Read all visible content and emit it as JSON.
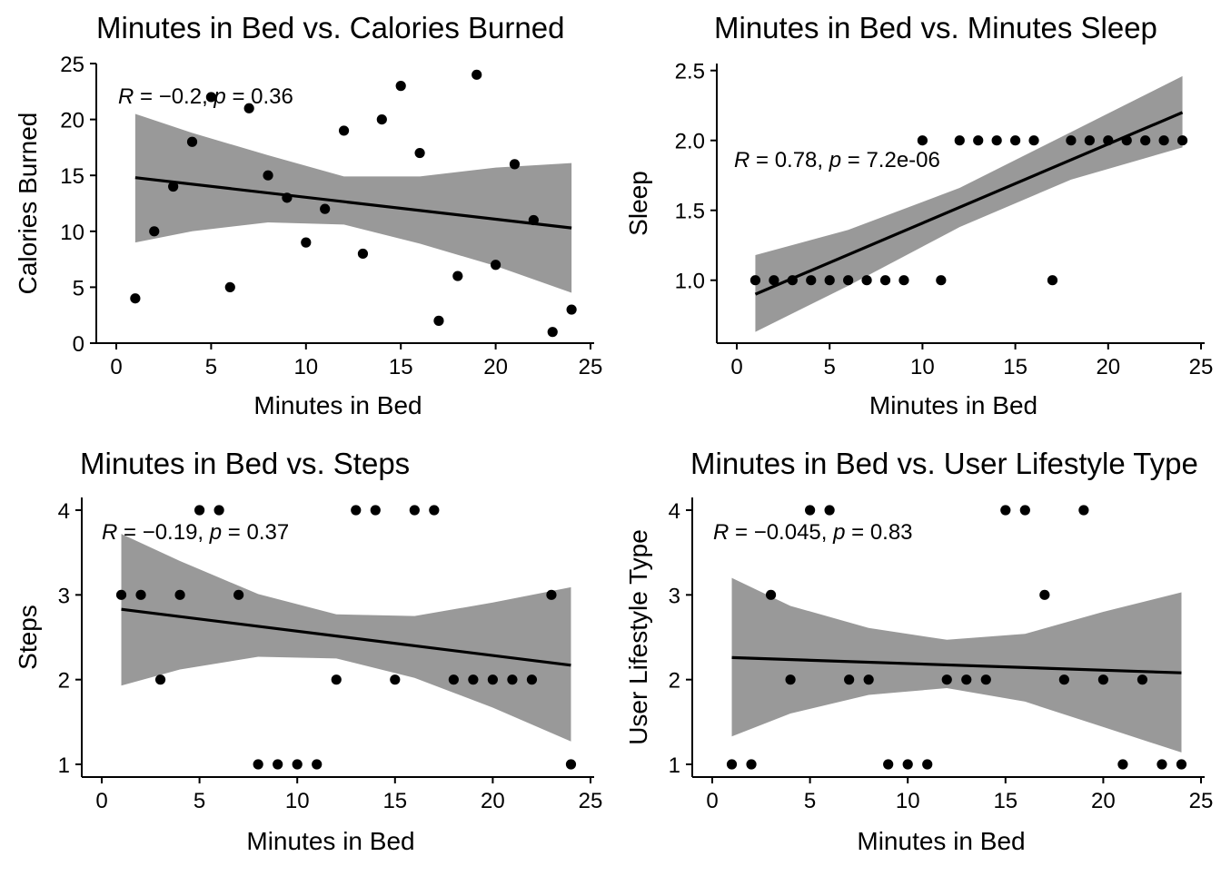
{
  "chart_data": [
    {
      "type": "scatter",
      "title": "Minutes in Bed vs. Calories Burned",
      "xlabel": "Minutes in Bed",
      "ylabel": "Calories Burned",
      "xlim": [
        0,
        25
      ],
      "ylim": [
        0,
        25
      ],
      "xticks": [
        0,
        5,
        10,
        15,
        20,
        25
      ],
      "yticks": [
        0,
        5,
        10,
        15,
        20,
        25
      ],
      "annotation": {
        "r": "-0.2",
        "p": "0.36"
      },
      "points": [
        [
          1,
          4
        ],
        [
          2,
          10
        ],
        [
          3,
          14
        ],
        [
          4,
          18
        ],
        [
          5,
          22
        ],
        [
          6,
          5
        ],
        [
          7,
          21
        ],
        [
          8,
          15
        ],
        [
          9,
          13
        ],
        [
          10,
          9
        ],
        [
          11,
          12
        ],
        [
          12,
          19
        ],
        [
          13,
          8
        ],
        [
          14,
          20
        ],
        [
          15,
          23
        ],
        [
          16,
          17
        ],
        [
          17,
          2
        ],
        [
          18,
          6
        ],
        [
          19,
          24
        ],
        [
          20,
          7
        ],
        [
          21,
          16
        ],
        [
          22,
          11
        ],
        [
          23,
          1
        ],
        [
          24,
          3
        ]
      ],
      "fit": {
        "x": [
          1,
          24
        ],
        "y": [
          14.8,
          10.3
        ]
      },
      "ci": [
        {
          "x": 1,
          "lo": 9.0,
          "hi": 20.5
        },
        {
          "x": 4,
          "lo": 10.0,
          "hi": 18.8
        },
        {
          "x": 8,
          "lo": 10.8,
          "hi": 16.8
        },
        {
          "x": 12,
          "lo": 10.6,
          "hi": 14.9
        },
        {
          "x": 16,
          "lo": 8.9,
          "hi": 14.9
        },
        {
          "x": 20,
          "lo": 6.9,
          "hi": 15.7
        },
        {
          "x": 24,
          "lo": 4.5,
          "hi": 16.1
        }
      ]
    },
    {
      "type": "scatter",
      "title": "Minutes in Bed vs. Minutes Sleep",
      "xlabel": "Minutes in Bed",
      "ylabel": "Sleep",
      "xlim": [
        0,
        25
      ],
      "ylim": [
        0.55,
        2.55
      ],
      "xticks": [
        0,
        5,
        10,
        15,
        20,
        25
      ],
      "yticks": [
        "1.0",
        "1.5",
        "2.0",
        "2.5"
      ],
      "annotation": {
        "r": "0.78",
        "p": "7.2e-06"
      },
      "points": [
        [
          1,
          1
        ],
        [
          2,
          1
        ],
        [
          3,
          1
        ],
        [
          4,
          1
        ],
        [
          5,
          1
        ],
        [
          6,
          1
        ],
        [
          7,
          1
        ],
        [
          8,
          1
        ],
        [
          9,
          1
        ],
        [
          10,
          2
        ],
        [
          11,
          1
        ],
        [
          12,
          2
        ],
        [
          13,
          2
        ],
        [
          14,
          2
        ],
        [
          15,
          2
        ],
        [
          16,
          2
        ],
        [
          17,
          1
        ],
        [
          18,
          2
        ],
        [
          19,
          2
        ],
        [
          20,
          2
        ],
        [
          21,
          2
        ],
        [
          22,
          2
        ],
        [
          23,
          2
        ],
        [
          24,
          2
        ]
      ],
      "fit": {
        "x": [
          1,
          24
        ],
        "y": [
          0.9,
          2.2
        ]
      },
      "ci": [
        {
          "x": 1,
          "lo": 0.63,
          "hi": 1.18
        },
        {
          "x": 6,
          "lo": 0.96,
          "hi": 1.36
        },
        {
          "x": 12,
          "lo": 1.38,
          "hi": 1.66
        },
        {
          "x": 18,
          "lo": 1.72,
          "hi": 2.06
        },
        {
          "x": 24,
          "lo": 1.95,
          "hi": 2.46
        }
      ]
    },
    {
      "type": "scatter",
      "title": "Minutes in Bed vs. Steps",
      "xlabel": "Minutes in Bed",
      "ylabel": "Steps",
      "xlim": [
        0,
        25
      ],
      "ylim": [
        0.85,
        4.15
      ],
      "xticks": [
        0,
        5,
        10,
        15,
        20,
        25
      ],
      "yticks": [
        1,
        2,
        3,
        4
      ],
      "annotation": {
        "r": "-0.19",
        "p": "0.37"
      },
      "points": [
        [
          1,
          3
        ],
        [
          2,
          3
        ],
        [
          3,
          2
        ],
        [
          4,
          3
        ],
        [
          5,
          4
        ],
        [
          6,
          4
        ],
        [
          7,
          3
        ],
        [
          8,
          1
        ],
        [
          9,
          1
        ],
        [
          10,
          1
        ],
        [
          11,
          1
        ],
        [
          12,
          2
        ],
        [
          13,
          4
        ],
        [
          14,
          4
        ],
        [
          15,
          2
        ],
        [
          16,
          4
        ],
        [
          17,
          4
        ],
        [
          18,
          2
        ],
        [
          19,
          2
        ],
        [
          20,
          2
        ],
        [
          21,
          2
        ],
        [
          22,
          2
        ],
        [
          23,
          3
        ],
        [
          24,
          1
        ]
      ],
      "fit": {
        "x": [
          1,
          24
        ],
        "y": [
          2.83,
          2.17
        ]
      },
      "ci": [
        {
          "x": 1,
          "lo": 1.93,
          "hi": 3.72
        },
        {
          "x": 4,
          "lo": 2.12,
          "hi": 3.4
        },
        {
          "x": 8,
          "lo": 2.27,
          "hi": 3.01
        },
        {
          "x": 12,
          "lo": 2.25,
          "hi": 2.77
        },
        {
          "x": 16,
          "lo": 2.02,
          "hi": 2.75
        },
        {
          "x": 20,
          "lo": 1.67,
          "hi": 2.91
        },
        {
          "x": 24,
          "lo": 1.27,
          "hi": 3.09
        }
      ]
    },
    {
      "type": "scatter",
      "title": "Minutes in Bed vs. User Lifestyle Type",
      "xlabel": "Minutes in Bed",
      "ylabel": "User Lifestyle Type",
      "xlim": [
        0,
        25
      ],
      "ylim": [
        0.85,
        4.15
      ],
      "xticks": [
        0,
        5,
        10,
        15,
        20,
        25
      ],
      "yticks": [
        1,
        2,
        3,
        4
      ],
      "annotation": {
        "r": "-0.045",
        "p": "0.83"
      },
      "points": [
        [
          1,
          1
        ],
        [
          2,
          1
        ],
        [
          3,
          3
        ],
        [
          4,
          2
        ],
        [
          5,
          4
        ],
        [
          6,
          4
        ],
        [
          7,
          2
        ],
        [
          8,
          2
        ],
        [
          9,
          1
        ],
        [
          10,
          1
        ],
        [
          11,
          1
        ],
        [
          12,
          2
        ],
        [
          13,
          2
        ],
        [
          14,
          2
        ],
        [
          15,
          4
        ],
        [
          16,
          4
        ],
        [
          17,
          3
        ],
        [
          18,
          2
        ],
        [
          19,
          4
        ],
        [
          20,
          2
        ],
        [
          21,
          1
        ],
        [
          22,
          2
        ],
        [
          23,
          1
        ],
        [
          24,
          1
        ]
      ],
      "fit": {
        "x": [
          1,
          24
        ],
        "y": [
          2.26,
          2.08
        ]
      },
      "ci": [
        {
          "x": 1,
          "lo": 1.33,
          "hi": 3.2
        },
        {
          "x": 4,
          "lo": 1.6,
          "hi": 2.87
        },
        {
          "x": 8,
          "lo": 1.82,
          "hi": 2.61
        },
        {
          "x": 12,
          "lo": 1.9,
          "hi": 2.47
        },
        {
          "x": 16,
          "lo": 1.74,
          "hi": 2.54
        },
        {
          "x": 20,
          "lo": 1.44,
          "hi": 2.8
        },
        {
          "x": 24,
          "lo": 1.14,
          "hi": 3.03
        }
      ]
    }
  ]
}
